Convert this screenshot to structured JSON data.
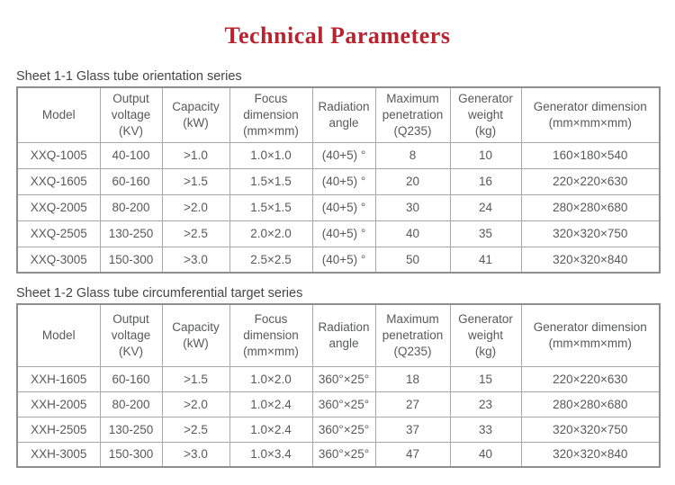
{
  "title": "Technical Parameters",
  "accent_color": "#b7232f",
  "tables": [
    {
      "caption": "Sheet 1-1 Glass tube orientation series",
      "headers": [
        "Model",
        "Output\nvoltage\n(KV)",
        "Capacity\n(kW)",
        "Focus\ndimension\n(mm×mm)",
        "Radiation\nangle",
        "Maximum\npenetration\n(Q235)",
        "Generator\nweight\n(kg)",
        "Generator dimension\n(mm×mm×mm)"
      ],
      "rows": [
        [
          "XXQ-1005",
          "40-100",
          ">1.0",
          "1.0×1.0",
          "(40+5) °",
          "8",
          "10",
          "160×180×540"
        ],
        [
          "XXQ-1605",
          "60-160",
          ">1.5",
          "1.5×1.5",
          "(40+5) °",
          "20",
          "16",
          "220×220×630"
        ],
        [
          "XXQ-2005",
          "80-200",
          ">2.0",
          "1.5×1.5",
          "(40+5) °",
          "30",
          "24",
          "280×280×680"
        ],
        [
          "XXQ-2505",
          "130-250",
          ">2.5",
          "2.0×2.0",
          "(40+5) °",
          "40",
          "35",
          "320×320×750"
        ],
        [
          "XXQ-3005",
          "150-300",
          ">3.0",
          "2.5×2.5",
          "(40+5) °",
          "50",
          "41",
          "320×320×840"
        ]
      ]
    },
    {
      "caption": "Sheet 1-2 Glass tube circumferential target series",
      "headers": [
        "Model",
        "Output\nvoltage\n(KV)",
        "Capacity\n(kW)",
        "Focus\ndimension\n(mm×mm)",
        "Radiation\nangle",
        "Maximum\npenetration\n(Q235)",
        "Generator\nweight\n(kg)",
        "Generator dimension\n(mm×mm×mm)"
      ],
      "rows": [
        [
          "XXH-1605",
          "60-160",
          ">1.5",
          "1.0×2.0",
          "360°×25°",
          "18",
          "15",
          "220×220×630"
        ],
        [
          "XXH-2005",
          "80-200",
          ">2.0",
          "1.0×2.4",
          "360°×25°",
          "27",
          "23",
          "280×280×680"
        ],
        [
          "XXH-2505",
          "130-250",
          ">2.5",
          "1.0×2.4",
          "360°×25°",
          "37",
          "33",
          "320×320×750"
        ],
        [
          "XXH-3005",
          "150-300",
          ">3.0",
          "1.0×3.4",
          "360°×25°",
          "47",
          "40",
          "320×320×840"
        ]
      ]
    }
  ]
}
